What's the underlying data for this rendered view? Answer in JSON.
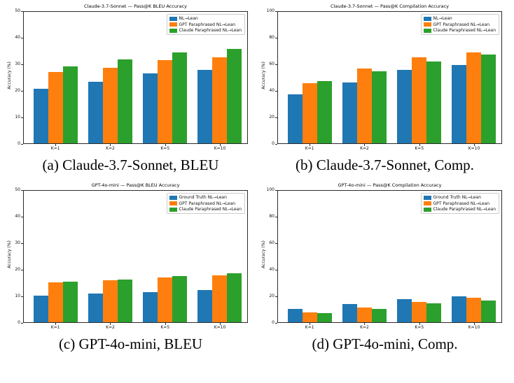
{
  "captions": [
    "(a) Claude-3.7-Sonnet, BLEU",
    "(b) Claude-3.7-Sonnet, Comp.",
    "(c) GPT-4o-mini, BLEU",
    "(d) GPT-4o-mini, Comp."
  ],
  "colors": {
    "blue": "#1f77b4",
    "orange": "#ff7f0e",
    "green": "#2ca02c"
  },
  "chart_data": [
    {
      "type": "bar",
      "title": "Claude-3.7-Sonnet — Pass@K BLEU Accuracy",
      "ylabel": "Accuracy (%)",
      "xlabel": "",
      "categories": [
        "K=1",
        "K=2",
        "K=5",
        "K=10"
      ],
      "series": [
        {
          "name": "NL→Lean",
          "color": "#1f77b4",
          "values": [
            20.7,
            23.3,
            26.5,
            27.9
          ]
        },
        {
          "name": "GPT Paraphrased NL→Lean",
          "color": "#ff7f0e",
          "values": [
            27.0,
            28.7,
            31.7,
            32.8
          ]
        },
        {
          "name": "Claude Paraphrased NL→Lean",
          "color": "#2ca02c",
          "values": [
            29.3,
            32.0,
            34.5,
            35.9
          ]
        }
      ],
      "ylim": [
        0,
        50
      ],
      "yticks": [
        0,
        10,
        20,
        30,
        40,
        50
      ],
      "legend_position": "upper right",
      "grid": false
    },
    {
      "type": "bar",
      "title": "Claude-3.7-Sonnet — Pass@K Compilation Accuracy",
      "ylabel": "Accuracy (%)",
      "xlabel": "",
      "categories": [
        "K=1",
        "K=2",
        "K=5",
        "K=10"
      ],
      "series": [
        {
          "name": "NL→Lean",
          "color": "#1f77b4",
          "values": [
            37.5,
            46.2,
            55.8,
            59.8
          ]
        },
        {
          "name": "GPT Paraphrased NL→Lean",
          "color": "#ff7f0e",
          "values": [
            45.5,
            56.7,
            65.3,
            69.3
          ]
        },
        {
          "name": "Claude Paraphrased NL→Lean",
          "color": "#2ca02c",
          "values": [
            47.3,
            55.0,
            62.0,
            67.3
          ]
        }
      ],
      "ylim": [
        0,
        100
      ],
      "yticks": [
        0,
        20,
        40,
        60,
        80,
        100
      ],
      "legend_position": "upper right",
      "grid": false
    },
    {
      "type": "bar",
      "title": "GPT-4o-mini — Pass@K BLEU Accuracy",
      "ylabel": "Accuracy (%)",
      "xlabel": "",
      "categories": [
        "K=1",
        "K=2",
        "K=5",
        "K=10"
      ],
      "series": [
        {
          "name": "Ground Truth NL→Lean",
          "color": "#1f77b4",
          "values": [
            10.1,
            10.8,
            11.5,
            12.2
          ]
        },
        {
          "name": "GPT Paraphrased NL→Lean",
          "color": "#ff7f0e",
          "values": [
            15.1,
            16.0,
            17.0,
            17.8
          ]
        },
        {
          "name": "Claude Paraphrased NL→Lean",
          "color": "#2ca02c",
          "values": [
            15.4,
            16.1,
            17.5,
            18.5
          ]
        }
      ],
      "ylim": [
        0,
        50
      ],
      "yticks": [
        0,
        10,
        20,
        30,
        40,
        50
      ],
      "legend_position": "upper right",
      "grid": false
    },
    {
      "type": "bar",
      "title": "GPT-4o-mini — Pass@K Compilation Accuracy",
      "ylabel": "Accuracy (%)",
      "xlabel": "",
      "categories": [
        "K=1",
        "K=2",
        "K=5",
        "K=10"
      ],
      "series": [
        {
          "name": "Ground Truth NL→Lean",
          "color": "#1f77b4",
          "values": [
            9.9,
            13.9,
            17.6,
            19.7
          ]
        },
        {
          "name": "GPT Paraphrased NL→Lean",
          "color": "#ff7f0e",
          "values": [
            7.2,
            11.1,
            15.6,
            18.5
          ]
        },
        {
          "name": "Claude Paraphrased NL→Lean",
          "color": "#2ca02c",
          "values": [
            7.0,
            9.9,
            14.5,
            16.4
          ]
        }
      ],
      "ylim": [
        0,
        100
      ],
      "yticks": [
        0,
        20,
        40,
        60,
        80,
        100
      ],
      "legend_position": "upper right",
      "grid": false
    }
  ]
}
